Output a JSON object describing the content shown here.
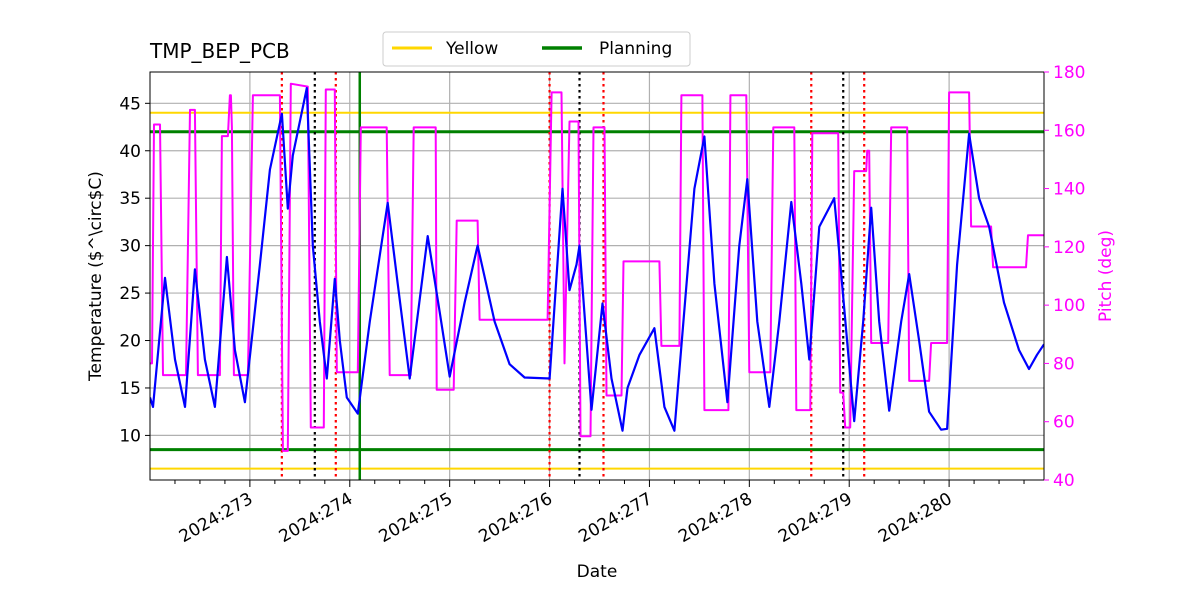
{
  "chart_data": {
    "type": "line",
    "title": "TMP_BEP_PCB",
    "xlabel": "Date",
    "ylabel_left": "Temperature ($^\\circ$C)",
    "ylabel_right": "Pitch (deg)",
    "ylim_left": [
      5.3,
      48.3
    ],
    "ylim_right": [
      40,
      180
    ],
    "left_ticks": [
      10,
      15,
      20,
      25,
      30,
      35,
      40,
      45
    ],
    "right_ticks": [
      40,
      60,
      80,
      100,
      120,
      140,
      160,
      180
    ],
    "x_unit": "day of year 2024",
    "xlim": [
      272.0,
      280.95
    ],
    "x_ticks": [
      {
        "day": 273,
        "label": "2024:273"
      },
      {
        "day": 274,
        "label": "2024:274"
      },
      {
        "day": 275,
        "label": "2024:275"
      },
      {
        "day": 276,
        "label": "2024:276"
      },
      {
        "day": 277,
        "label": "2024:277"
      },
      {
        "day": 278,
        "label": "2024:278"
      },
      {
        "day": 279,
        "label": "2024:279"
      },
      {
        "day": 280,
        "label": "2024:280"
      }
    ],
    "grid": true,
    "legend": {
      "placement": "top-center",
      "entries": [
        {
          "label": "Yellow",
          "color": "#ffd700"
        },
        {
          "label": "Planning",
          "color": "#008000"
        }
      ]
    },
    "limits": [
      {
        "name": "Yellow",
        "values": [
          6.5,
          44.0
        ],
        "color": "#ffd700"
      },
      {
        "name": "Planning",
        "values": [
          8.5,
          42.0
        ],
        "color": "#008000"
      }
    ],
    "green_vline_day": 274.1,
    "red_dotted_days": [
      273.32,
      273.86,
      276.0,
      276.54,
      278.62,
      279.15
    ],
    "black_dotted_days": [
      273.65,
      276.3,
      278.94
    ],
    "series": [
      {
        "axis": "left",
        "color": "#0000ff",
        "points": [
          [
            272.0,
            14.0
          ],
          [
            272.03,
            13.0
          ],
          [
            272.15,
            26.6
          ],
          [
            272.25,
            18.0
          ],
          [
            272.35,
            13.0
          ],
          [
            272.45,
            27.5
          ],
          [
            272.55,
            18.0
          ],
          [
            272.65,
            13.0
          ],
          [
            272.77,
            28.8
          ],
          [
            272.85,
            19.0
          ],
          [
            272.95,
            13.5
          ],
          [
            273.1,
            28.0
          ],
          [
            273.2,
            38.0
          ],
          [
            273.32,
            43.9
          ],
          [
            273.38,
            33.9
          ],
          [
            273.43,
            39.5
          ],
          [
            273.57,
            46.6
          ],
          [
            273.63,
            30.0
          ],
          [
            273.7,
            22.0
          ],
          [
            273.77,
            16.0
          ],
          [
            273.85,
            26.5
          ],
          [
            273.9,
            20.0
          ],
          [
            273.97,
            14.0
          ],
          [
            274.08,
            12.3
          ],
          [
            274.2,
            22.0
          ],
          [
            274.38,
            34.5
          ],
          [
            274.48,
            26.0
          ],
          [
            274.6,
            16.0
          ],
          [
            274.78,
            31.0
          ],
          [
            274.9,
            23.0
          ],
          [
            275.0,
            16.2
          ],
          [
            275.15,
            24.0
          ],
          [
            275.28,
            30.0
          ],
          [
            275.45,
            22.0
          ],
          [
            275.6,
            17.5
          ],
          [
            275.75,
            16.1
          ],
          [
            276.0,
            16.0
          ],
          [
            276.13,
            36.0
          ],
          [
            276.2,
            25.3
          ],
          [
            276.27,
            28.0
          ],
          [
            276.3,
            30.0
          ],
          [
            276.42,
            12.7
          ],
          [
            276.53,
            23.9
          ],
          [
            276.62,
            16.0
          ],
          [
            276.73,
            10.5
          ],
          [
            276.78,
            15.0
          ],
          [
            276.9,
            18.5
          ],
          [
            277.05,
            21.3
          ],
          [
            277.15,
            13.0
          ],
          [
            277.25,
            10.5
          ],
          [
            277.45,
            36.0
          ],
          [
            277.55,
            41.5
          ],
          [
            277.65,
            26.0
          ],
          [
            277.78,
            13.5
          ],
          [
            277.9,
            30.0
          ],
          [
            277.98,
            37.0
          ],
          [
            278.08,
            22.0
          ],
          [
            278.2,
            13.0
          ],
          [
            278.3,
            22.0
          ],
          [
            278.42,
            34.6
          ],
          [
            278.52,
            26.0
          ],
          [
            278.6,
            18.0
          ],
          [
            278.7,
            32.0
          ],
          [
            278.85,
            35.0
          ],
          [
            278.92,
            27.0
          ],
          [
            279.05,
            11.5
          ],
          [
            279.14,
            22.0
          ],
          [
            279.22,
            34.0
          ],
          [
            279.3,
            22.0
          ],
          [
            279.4,
            12.6
          ],
          [
            279.52,
            22.0
          ],
          [
            279.6,
            27.0
          ],
          [
            279.7,
            20.0
          ],
          [
            279.8,
            12.5
          ],
          [
            279.92,
            10.6
          ],
          [
            279.98,
            10.7
          ],
          [
            280.08,
            28.0
          ],
          [
            280.2,
            41.8
          ],
          [
            280.3,
            35.0
          ],
          [
            280.4,
            32.0
          ],
          [
            280.55,
            24.0
          ],
          [
            280.7,
            19.0
          ],
          [
            280.8,
            17.0
          ],
          [
            280.88,
            18.5
          ],
          [
            280.95,
            19.6
          ]
        ]
      },
      {
        "axis": "right",
        "color": "#ff00ff",
        "points": [
          [
            272.0,
            80
          ],
          [
            272.02,
            80
          ],
          [
            272.04,
            162
          ],
          [
            272.1,
            162
          ],
          [
            272.13,
            76
          ],
          [
            272.36,
            76
          ],
          [
            272.4,
            167
          ],
          [
            272.45,
            167
          ],
          [
            272.48,
            76
          ],
          [
            272.7,
            76
          ],
          [
            272.72,
            158
          ],
          [
            272.78,
            158
          ],
          [
            272.8,
            172
          ],
          [
            272.81,
            172
          ],
          [
            272.82,
            161
          ],
          [
            272.84,
            76
          ],
          [
            272.98,
            76
          ],
          [
            273.03,
            172
          ],
          [
            273.3,
            172
          ],
          [
            273.33,
            50
          ],
          [
            273.38,
            50
          ],
          [
            273.41,
            176
          ],
          [
            273.58,
            175
          ],
          [
            273.61,
            58
          ],
          [
            273.74,
            58
          ],
          [
            273.76,
            174
          ],
          [
            273.85,
            174
          ],
          [
            273.87,
            77
          ],
          [
            274.08,
            77
          ],
          [
            274.11,
            161
          ],
          [
            274.37,
            161
          ],
          [
            274.4,
            76
          ],
          [
            274.61,
            76
          ],
          [
            274.64,
            161
          ],
          [
            274.86,
            161
          ],
          [
            274.87,
            71
          ],
          [
            275.04,
            71
          ],
          [
            275.07,
            129
          ],
          [
            275.28,
            129
          ],
          [
            275.3,
            95
          ],
          [
            275.98,
            95
          ],
          [
            276.02,
            173
          ],
          [
            276.12,
            173
          ],
          [
            276.15,
            80
          ],
          [
            276.2,
            163
          ],
          [
            276.29,
            163
          ],
          [
            276.31,
            55
          ],
          [
            276.41,
            55
          ],
          [
            276.44,
            161
          ],
          [
            276.55,
            161
          ],
          [
            276.57,
            69
          ],
          [
            276.72,
            69
          ],
          [
            276.74,
            115
          ],
          [
            277.1,
            115
          ],
          [
            277.12,
            86
          ],
          [
            277.3,
            86
          ],
          [
            277.32,
            172
          ],
          [
            277.53,
            172
          ],
          [
            277.55,
            64
          ],
          [
            277.79,
            64
          ],
          [
            277.81,
            172
          ],
          [
            277.97,
            172
          ],
          [
            278.0,
            77
          ],
          [
            278.21,
            77
          ],
          [
            278.24,
            161
          ],
          [
            278.45,
            161
          ],
          [
            278.47,
            64
          ],
          [
            278.61,
            64
          ],
          [
            278.63,
            159
          ],
          [
            278.89,
            159
          ],
          [
            278.91,
            70
          ],
          [
            278.94,
            70
          ],
          [
            278.96,
            58
          ],
          [
            279.01,
            58
          ],
          [
            279.05,
            146
          ],
          [
            279.17,
            146
          ],
          [
            279.18,
            153
          ],
          [
            279.2,
            153
          ],
          [
            279.22,
            87
          ],
          [
            279.39,
            87
          ],
          [
            279.42,
            161
          ],
          [
            279.58,
            161
          ],
          [
            279.6,
            74
          ],
          [
            279.8,
            74
          ],
          [
            279.82,
            87
          ],
          [
            279.98,
            87
          ],
          [
            280.0,
            173
          ],
          [
            280.2,
            173
          ],
          [
            280.22,
            127
          ],
          [
            280.42,
            127
          ],
          [
            280.44,
            113
          ],
          [
            280.77,
            113
          ],
          [
            280.79,
            124
          ],
          [
            280.95,
            124
          ]
        ]
      }
    ]
  }
}
